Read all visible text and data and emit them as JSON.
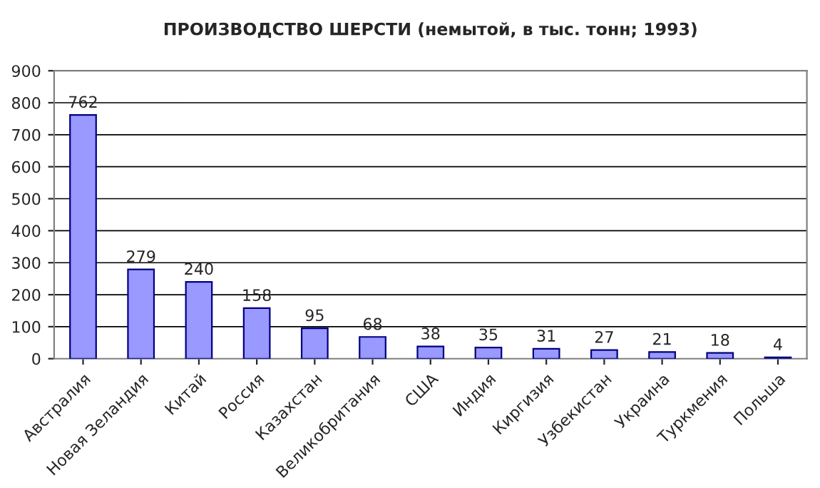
{
  "chart_data": {
    "type": "bar",
    "title": "ПРОИЗВОДСТВО ШЕРСТИ (немытой, в тыс. тонн; 1993)",
    "categories": [
      "Австралия",
      "Новая Зеландия",
      "Китай",
      "Россия",
      "Казахстан",
      "Великобритания",
      "США",
      "Индия",
      "Киргизия",
      "Узбекистан",
      "Украина",
      "Туркмения",
      "Польша"
    ],
    "values": [
      762,
      279,
      240,
      158,
      95,
      68,
      38,
      35,
      31,
      27,
      21,
      18,
      4
    ],
    "color": "#9999ff",
    "ylim": [
      0,
      900
    ],
    "yticks": [
      0,
      100,
      200,
      300,
      400,
      500,
      600,
      700,
      800,
      900
    ],
    "grid": "y",
    "data_labels": true
  }
}
